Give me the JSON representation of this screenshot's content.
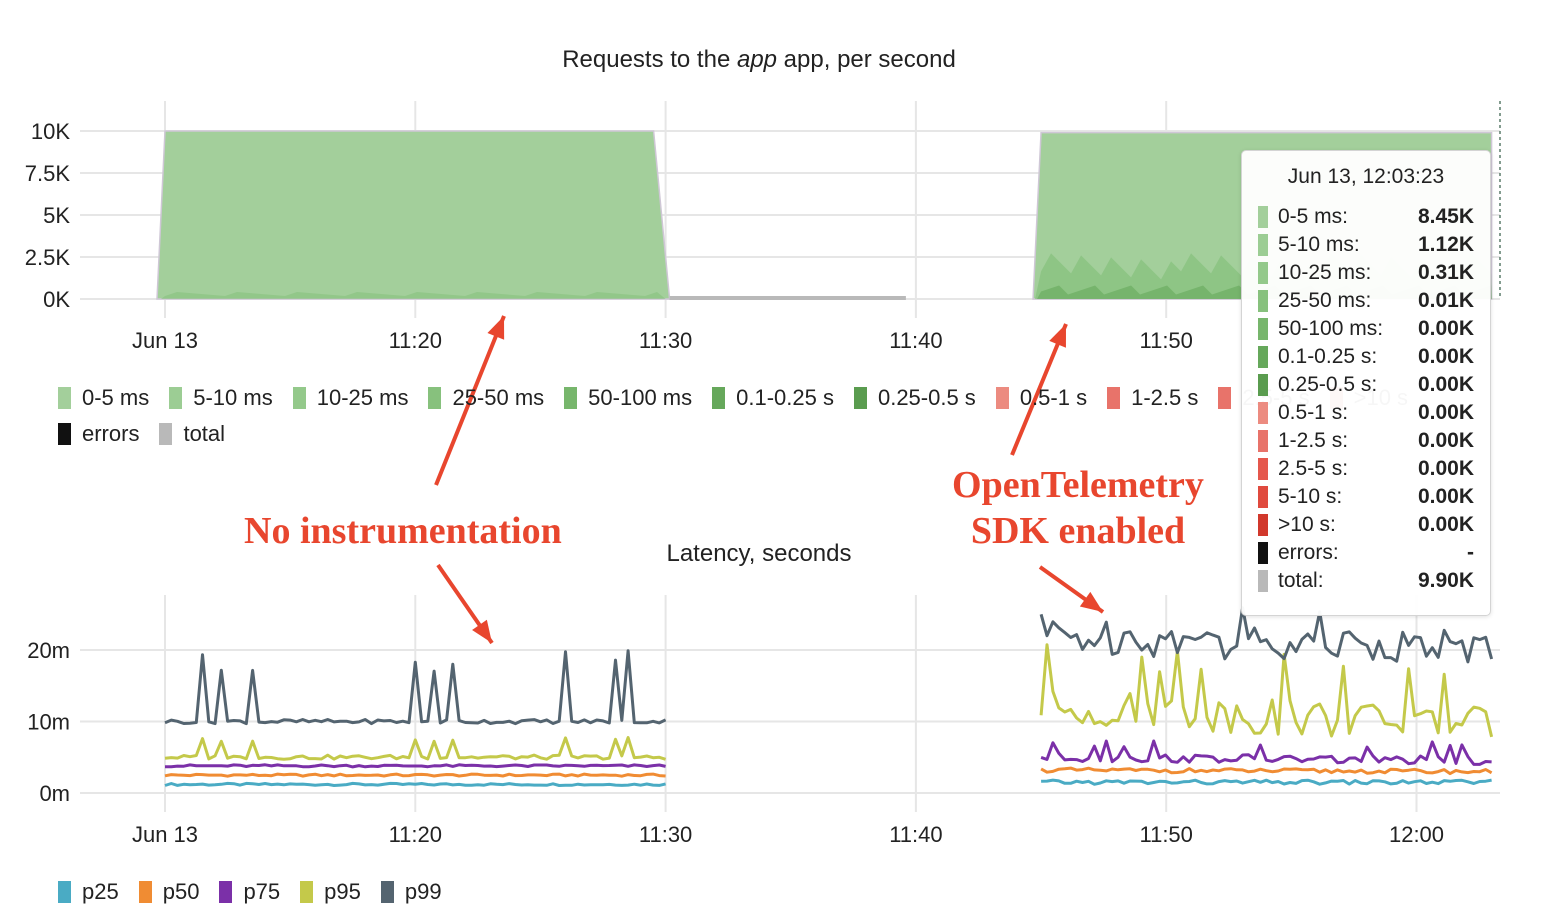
{
  "chart_data": [
    {
      "type": "area",
      "title": "Requests to the app app, per second",
      "title_parts": {
        "before": "Requests to the ",
        "italic": "app",
        "after": " app, per second"
      },
      "x_ticks": [
        "Jun 13",
        "11:20",
        "11:30",
        "11:40",
        "11:50"
      ],
      "y_ticks": [
        "10K",
        "7.5K",
        "5K",
        "2.5K",
        "0K"
      ],
      "ylim": [
        0,
        10000
      ],
      "grid": true,
      "stacked": true,
      "segments": [
        {
          "start": "11:10",
          "end": "11:30",
          "total": 10000
        },
        {
          "start": "11:45",
          "end": "12:03",
          "total": 9900
        }
      ],
      "legend_position": "bottom-left",
      "legend": [
        {
          "name": "0-5 ms",
          "color": "#a3cf9b"
        },
        {
          "name": "5-10 ms",
          "color": "#9ccd94"
        },
        {
          "name": "10-25 ms",
          "color": "#94c98b"
        },
        {
          "name": "25-50 ms",
          "color": "#87c17d"
        },
        {
          "name": "50-100 ms",
          "color": "#77b66c"
        },
        {
          "name": "0.1-0.25 s",
          "color": "#66a85b"
        },
        {
          "name": "0.25-0.5 s",
          "color": "#5a9c4f"
        },
        {
          "name": "0.5-1 s",
          "color": "#ec8b80"
        },
        {
          "name": "1-2.5 s",
          "color": "#e8736a"
        },
        {
          "name": "2.5-5 s",
          "color": "#e8736a"
        },
        {
          "name": ">10 s",
          "color": "#d1382c"
        },
        {
          "name": "errors",
          "color": "#111111"
        },
        {
          "name": "total",
          "color": "#b9b9b9"
        }
      ]
    },
    {
      "type": "line",
      "title": "Latency, seconds",
      "x_ticks": [
        "Jun 13",
        "11:20",
        "11:30",
        "11:40",
        "11:50",
        "12:00"
      ],
      "y_ticks": [
        "20m",
        "10m",
        "0m"
      ],
      "ylim": [
        0,
        0.02
      ],
      "grid": true,
      "segments": [
        {
          "start": "11:10",
          "end": "11:30"
        },
        {
          "start": "11:45",
          "end": "12:03"
        }
      ],
      "series": [
        {
          "name": "p25",
          "color": "#4aabc4",
          "values_ms": [
            1.2,
            1.2
          ],
          "values_ms_seg2": [
            1.5,
            1.5
          ]
        },
        {
          "name": "p50",
          "color": "#f08c33",
          "values_ms": [
            2.5,
            2.5
          ],
          "values_ms_seg2": [
            3.2,
            3.0
          ]
        },
        {
          "name": "p75",
          "color": "#7b30a8",
          "values_ms": [
            3.8,
            3.8
          ],
          "values_ms_seg2": [
            5.0,
            4.5
          ]
        },
        {
          "name": "p95",
          "color": "#c4c94a",
          "values_ms": [
            5.0,
            5.0
          ],
          "values_ms_seg2": [
            12.0,
            9.5
          ]
        },
        {
          "name": "p99",
          "color": "#546470",
          "values_ms": [
            10.0,
            10.0
          ],
          "values_ms_seg2": [
            22.0,
            20.0
          ]
        }
      ],
      "legend_position": "bottom-left"
    }
  ],
  "tooltip": {
    "title": "Jun 13, 12:03:23",
    "rows": [
      {
        "label": "0-5 ms:",
        "value": "8.45K",
        "color": "#a3cf9b"
      },
      {
        "label": "5-10 ms:",
        "value": "1.12K",
        "color": "#9ccd94"
      },
      {
        "label": "10-25 ms:",
        "value": "0.31K",
        "color": "#94c98b"
      },
      {
        "label": "25-50 ms:",
        "value": "0.01K",
        "color": "#87c17d"
      },
      {
        "label": "50-100 ms:",
        "value": "0.00K",
        "color": "#77b66c"
      },
      {
        "label": "0.1-0.25 s:",
        "value": "0.00K",
        "color": "#66a85b"
      },
      {
        "label": "0.25-0.5 s:",
        "value": "0.00K",
        "color": "#5a9c4f"
      },
      {
        "label": "0.5-1 s:",
        "value": "0.00K",
        "color": "#ec8b80"
      },
      {
        "label": "1-2.5 s:",
        "value": "0.00K",
        "color": "#e8736a"
      },
      {
        "label": "2.5-5 s:",
        "value": "0.00K",
        "color": "#e5574c"
      },
      {
        "label": "5-10 s:",
        "value": "0.00K",
        "color": "#e04a3e"
      },
      {
        "label": ">10 s:",
        "value": "0.00K",
        "color": "#d1382c"
      },
      {
        "label": "errors:",
        "value": "-",
        "color": "#111111"
      },
      {
        "label": "total:",
        "value": "9.90K",
        "color": "#b9b9b9"
      }
    ]
  },
  "annotations": {
    "left": "No instrumentation",
    "right_line1": "OpenTelemetry",
    "right_line2": "SDK enabled",
    "color": "#e8462e"
  }
}
